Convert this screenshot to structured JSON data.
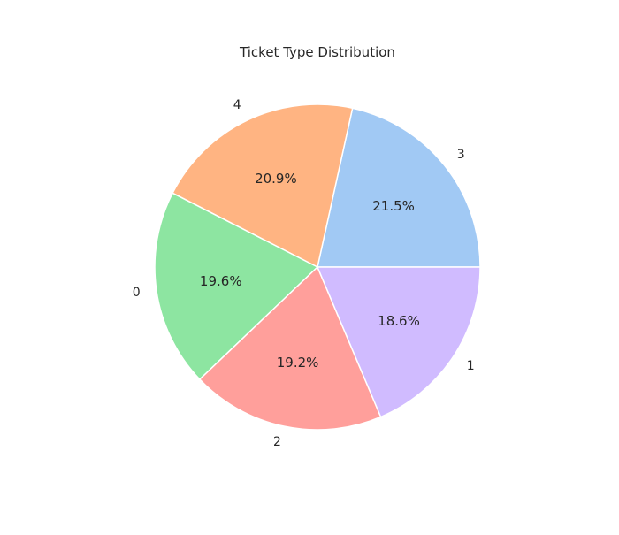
{
  "chart_data": {
    "type": "pie",
    "title": "Ticket Type Distribution",
    "slices": [
      {
        "label": "3",
        "value": 21.5,
        "pct_label": "21.5%",
        "color": "#a1c9f4"
      },
      {
        "label": "4",
        "value": 20.9,
        "pct_label": "20.9%",
        "color": "#ffb482"
      },
      {
        "label": "0",
        "value": 19.6,
        "pct_label": "19.6%",
        "color": "#8de5a1"
      },
      {
        "label": "2",
        "value": 19.2,
        "pct_label": "19.2%",
        "color": "#ff9f9b"
      },
      {
        "label": "1",
        "value": 18.6,
        "pct_label": "18.6%",
        "color": "#d0bbff"
      }
    ],
    "start_angle_deg": 0,
    "direction": "counterclockwise",
    "edge_color": "#ffffff"
  }
}
